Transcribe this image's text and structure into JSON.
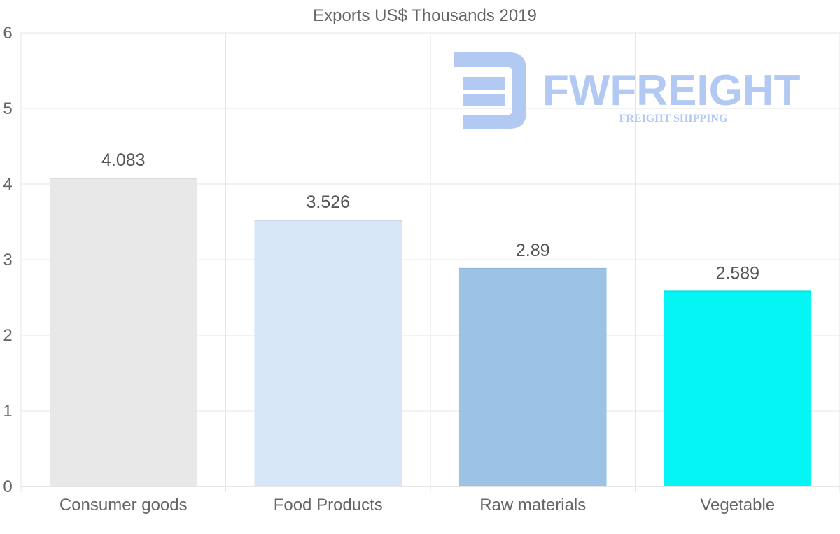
{
  "chart_data": {
    "type": "bar",
    "title": "Exports US$ Thousands 2019",
    "categories": [
      "Consumer goods",
      "Food Products",
      "Raw materials",
      "Vegetable"
    ],
    "values": [
      4.083,
      3.526,
      2.89,
      2.589
    ],
    "value_labels": [
      "4.083",
      "3.526",
      "2.89",
      "2.589"
    ],
    "bar_colors": [
      "#e8e8e8",
      "#d7e7f8",
      "#9cc3e6",
      "#05f5f5"
    ],
    "ylim": [
      0,
      6
    ],
    "yticks": [
      "0",
      "1",
      "2",
      "3",
      "4",
      "5",
      "6"
    ],
    "xlabel": "",
    "ylabel": "",
    "grid": true,
    "legend": "none"
  },
  "watermark": {
    "brand": "FWFREIGHT",
    "tagline": "FREIGHT SHIPPING",
    "color": "#aac4f2"
  }
}
